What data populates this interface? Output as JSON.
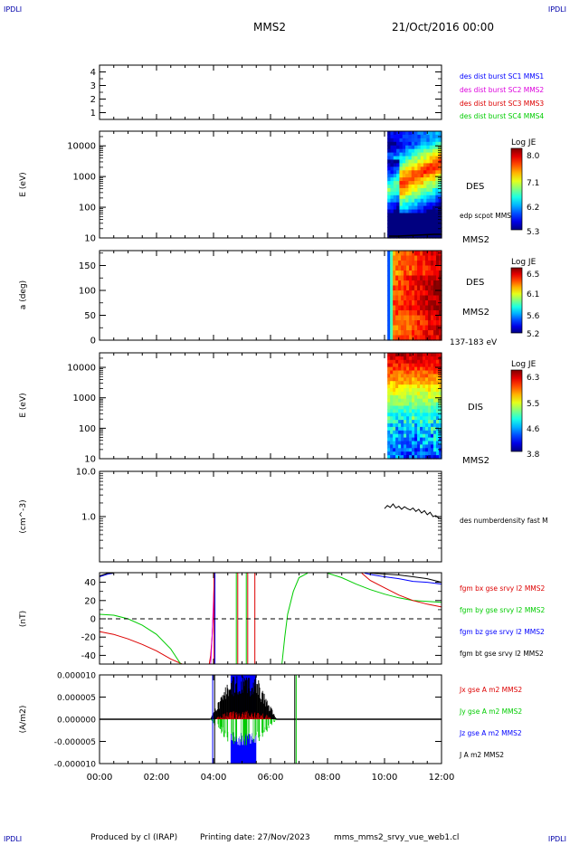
{
  "header": {
    "corner_label": "IPDLI",
    "spacecraft": "MMS2",
    "date": "21/Oct/2016 00:00"
  },
  "footer": {
    "produced_by": "Produced by cl (IRAP)",
    "printing_date": "Printing date: 27/Nov/2023",
    "file_name": "mms_mms2_srvy_vue_web1.cl"
  },
  "colors": {
    "blue": "#0000ff",
    "magenta": "#dd00dd",
    "red": "#dd0000",
    "green": "#00cc00",
    "black": "#000000"
  },
  "chart_data": [
    {
      "id": "burst",
      "type": "line",
      "yticks": [
        "1",
        "2",
        "3",
        "4"
      ],
      "ylim": [
        0.5,
        4.5
      ],
      "legend": [
        {
          "text": "des dist burst SC1 MMS1",
          "color": "#0000ff"
        },
        {
          "text": "des dist burst SC2 MMS2",
          "color": "#dd00dd"
        },
        {
          "text": "des dist burst SC3 MMS3",
          "color": "#dd0000"
        },
        {
          "text": "des dist burst SC4 MMS4",
          "color": "#00cc00"
        }
      ]
    },
    {
      "id": "des_energy",
      "type": "heatmap",
      "ylabel": "E (eV)",
      "yscale": "log",
      "ylim": [
        10,
        30000
      ],
      "yticks": [
        "10",
        "100",
        "1000",
        "10000"
      ],
      "xlim_hours": [
        10.1,
        12.0
      ],
      "label": "DES",
      "sublabel": "MMS2",
      "line_label": "edp scpot MMS2",
      "colorbar": {
        "title": "Log JE",
        "ticks": [
          "8.0",
          "7.1",
          "6.2",
          "5.3"
        ]
      }
    },
    {
      "id": "des_pitch",
      "type": "heatmap",
      "ylabel": "a (deg)",
      "ylim": [
        0,
        180
      ],
      "yticks": [
        "0",
        "50",
        "100",
        "150"
      ],
      "label": "DES",
      "sublabel": "MMS2",
      "energy_range": "137-183 eV",
      "colorbar": {
        "title": "Log JE",
        "ticks": [
          "6.5",
          "6.1",
          "5.6",
          "5.2"
        ]
      }
    },
    {
      "id": "dis_energy",
      "type": "heatmap",
      "ylabel": "E (eV)",
      "yscale": "log",
      "ylim": [
        10,
        30000
      ],
      "yticks": [
        "10",
        "100",
        "1000",
        "10000"
      ],
      "label": "DIS",
      "sublabel": "MMS2",
      "colorbar": {
        "title": "Log JE",
        "ticks": [
          "6.3",
          "5.5",
          "4.6",
          "3.8"
        ]
      }
    },
    {
      "id": "density",
      "type": "line",
      "ylabel": "(cm^-3)",
      "yscale": "log",
      "ylim": [
        0.1,
        10
      ],
      "yticks": [
        "1.0",
        "10.0"
      ],
      "legend": [
        {
          "text": "des numberdensity fast M",
          "color": "#000000"
        }
      ],
      "series": [
        {
          "color": "#000000",
          "x": [
            10.0,
            10.1,
            10.2,
            10.3,
            10.4,
            10.5,
            10.6,
            10.7,
            10.8,
            10.9,
            11.0,
            11.1,
            11.2,
            11.3,
            11.4,
            11.5,
            11.6,
            11.7,
            11.8,
            11.9,
            12.0
          ],
          "y": [
            1.5,
            1.75,
            1.6,
            1.9,
            1.55,
            1.7,
            1.45,
            1.65,
            1.5,
            1.4,
            1.55,
            1.3,
            1.45,
            1.2,
            1.35,
            1.1,
            1.25,
            1.0,
            1.05,
            0.92,
            0.9
          ]
        }
      ]
    },
    {
      "id": "fgm",
      "type": "line",
      "ylabel": "(nT)",
      "ylim": [
        -50,
        50
      ],
      "yticks": [
        "-40",
        "-20",
        "0",
        "20",
        "40"
      ],
      "legend": [
        {
          "text": "fgm bx gse srvy l2 MMS2",
          "color": "#dd0000"
        },
        {
          "text": "fgm by gse srvy l2 MMS2",
          "color": "#00cc00"
        },
        {
          "text": "fgm bz gse srvy l2 MMS2",
          "color": "#0000ff"
        },
        {
          "text": "fgm bt gse srvy l2 MMS2",
          "color": "#000000"
        }
      ],
      "series": [
        {
          "color": "#0000ff",
          "x": [
            0,
            0.3,
            0.5
          ],
          "y": [
            46,
            49,
            50
          ]
        },
        {
          "color": "#000000",
          "x": [
            0,
            0.3,
            0.5
          ],
          "y": [
            47,
            50,
            50
          ]
        },
        {
          "color": "#dd0000",
          "x": [
            0,
            0.5,
            1.0,
            1.5,
            2.0,
            2.5,
            2.9
          ],
          "y": [
            -14,
            -17,
            -22,
            -28,
            -35,
            -44,
            -50
          ]
        },
        {
          "color": "#00cc00",
          "x": [
            0,
            0.5,
            1.0,
            1.5,
            2.0,
            2.5,
            2.85
          ],
          "y": [
            5,
            4,
            0,
            -7,
            -17,
            -33,
            -50
          ]
        },
        {
          "color": "#dd0000",
          "x": [
            3.85,
            3.9,
            3.95,
            4.0,
            4.03
          ],
          "y": [
            -50,
            -40,
            -20,
            10,
            50
          ]
        },
        {
          "color": "#dd00dd",
          "x": [
            3.9,
            3.95,
            4.0,
            4.03
          ],
          "y": [
            -50,
            -20,
            20,
            50
          ]
        },
        {
          "color": "#00cc00",
          "x": [
            6.4,
            6.5,
            6.6,
            6.8,
            7.0,
            7.3
          ],
          "y": [
            -50,
            -20,
            5,
            30,
            45,
            50
          ]
        },
        {
          "color": "#0000ff",
          "x": [
            9.3,
            9.6,
            10.0,
            10.5,
            11.0,
            11.5,
            12.0
          ],
          "y": [
            50,
            48,
            46,
            44,
            41,
            40,
            38
          ]
        },
        {
          "color": "#000000",
          "x": [
            9.5,
            10.0,
            10.5,
            11.0,
            11.5,
            12.0
          ],
          "y": [
            50,
            49,
            48,
            46,
            44,
            40
          ]
        },
        {
          "color": "#00cc00",
          "x": [
            8.0,
            8.5,
            9.0,
            9.5,
            10.0,
            10.5,
            11.0,
            11.5,
            12.0
          ],
          "y": [
            50,
            45,
            38,
            32,
            27,
            23,
            20,
            19,
            18
          ]
        },
        {
          "color": "#dd0000",
          "x": [
            9.2,
            9.5,
            10.0,
            10.5,
            11.0,
            11.5,
            12.0
          ],
          "y": [
            50,
            42,
            34,
            26,
            20,
            16,
            13
          ]
        }
      ],
      "vlines": [
        {
          "x": 4.02,
          "color": "#dd0000"
        },
        {
          "x": 4.05,
          "color": "#0000ff"
        },
        {
          "x": 4.8,
          "color": "#00cc00"
        },
        {
          "x": 4.85,
          "color": "#dd0000"
        },
        {
          "x": 5.15,
          "color": "#00cc00"
        },
        {
          "x": 5.2,
          "color": "#dd0000"
        },
        {
          "x": 5.45,
          "color": "#dd0000"
        }
      ]
    },
    {
      "id": "current",
      "type": "line",
      "ylabel": "(A/m2)",
      "ylim": [
        -1e-05,
        1e-05
      ],
      "yticks": [
        "-0.000010",
        "-0.000005",
        "0.000000",
        "0.000005",
        "0.000010"
      ],
      "xticks": [
        "00:00",
        "02:00",
        "04:00",
        "06:00",
        "08:00",
        "10:00",
        "12:00"
      ],
      "xlim_hours": [
        0,
        12
      ],
      "legend": [
        {
          "text": "Jx gse A m2 MMS2",
          "color": "#dd0000"
        },
        {
          "text": "Jy gse A m2 MMS2",
          "color": "#00cc00"
        },
        {
          "text": "Jz gse A m2 MMS2",
          "color": "#0000ff"
        },
        {
          "text": "J A m2 MMS2",
          "color": "#000000"
        }
      ]
    }
  ]
}
